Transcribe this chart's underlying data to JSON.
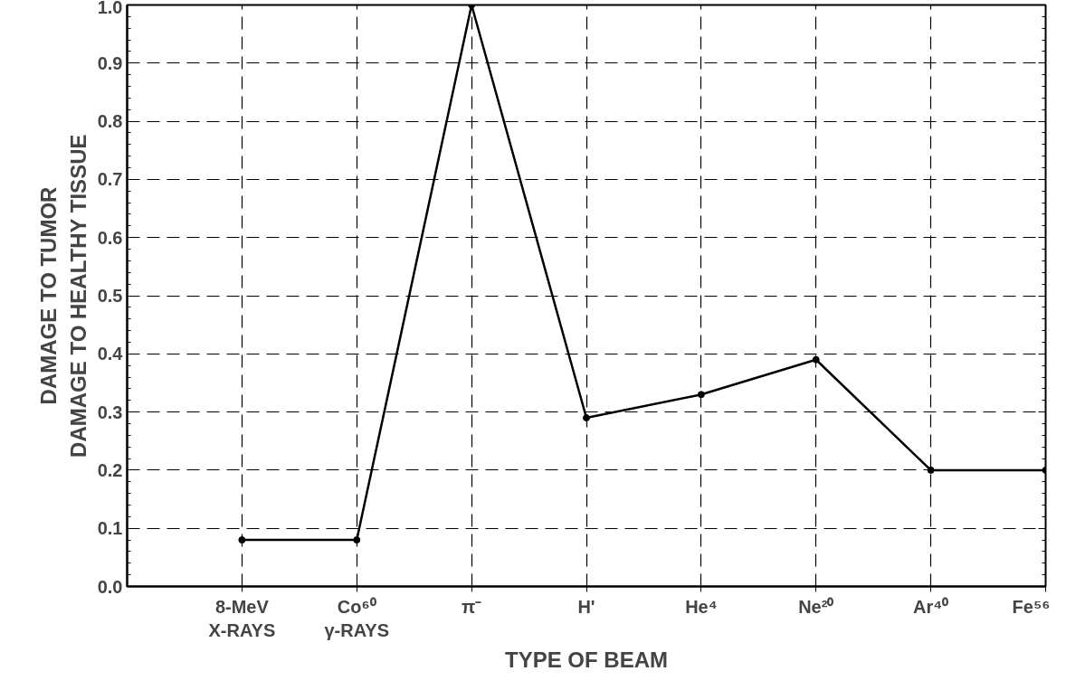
{
  "chart_data": {
    "type": "line",
    "xlabel": "TYPE OF BEAM",
    "ylabel": "DAMAGE TO TUMOR\nDAMAGE TO HEALTHY TISSUE",
    "categories": [
      "8-MeV\nX-RAYS",
      "Co⁶⁰\nγ-RAYS",
      "π⁻",
      "H'",
      "He⁴",
      "Ne²⁰",
      "Ar⁴⁰",
      "Fe⁵⁶"
    ],
    "series": [
      {
        "color": "#000000",
        "values": [
          0.08,
          0.08,
          1.0,
          0.29,
          0.33,
          0.39,
          0.2,
          0.2
        ]
      }
    ],
    "ylim": [
      0,
      1.0
    ],
    "yticks": [
      {
        "value": 0,
        "label": "0.0"
      },
      0.1,
      0.2,
      0.3,
      0.4,
      0.5,
      0.6,
      0.7,
      0.8,
      0.9,
      {
        "value": 1.0,
        "label": "1.0"
      }
    ],
    "grid": true,
    "marker": "circle",
    "line_style": "solid"
  }
}
